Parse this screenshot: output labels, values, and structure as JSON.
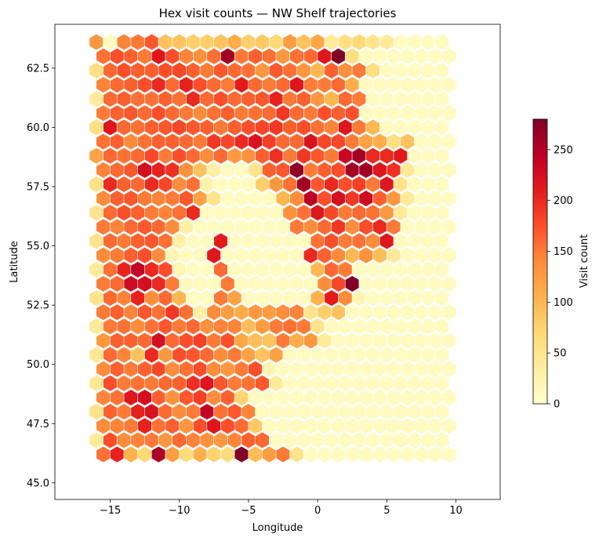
{
  "chart_data": {
    "type": "heatmap",
    "subtype": "hexbin",
    "title": "Hex visit counts — NW Shelf trajectories",
    "xlabel": "Longitude",
    "ylabel": "Latitude",
    "xlim": [
      -19.0,
      13.2
    ],
    "ylim": [
      44.3,
      64.35
    ],
    "x_ticks": [
      -15,
      -10,
      -5,
      0,
      5,
      10
    ],
    "x_tick_labels": [
      "−15",
      "−10",
      "−5",
      "0",
      "5",
      "10"
    ],
    "y_ticks": [
      45.0,
      47.5,
      50.0,
      52.5,
      55.0,
      57.5,
      60.0,
      62.5
    ],
    "y_tick_labels": [
      "45.0",
      "47.5",
      "50.0",
      "52.5",
      "55.0",
      "57.5",
      "60.0",
      "62.5"
    ],
    "colorbar": {
      "label": "Visit count",
      "range": [
        0,
        280
      ],
      "ticks": [
        0,
        50,
        100,
        150,
        200,
        250
      ],
      "colormap": "YlOrRd",
      "stops": [
        "#ffffcc",
        "#ffeda0",
        "#fed976",
        "#feb24c",
        "#fd8d3c",
        "#fc4e2a",
        "#e31a1c",
        "#bd0026",
        "#800026"
      ]
    },
    "grid": false,
    "hex_grid": {
      "row_lat_start": 46.2,
      "row_lat_step": 0.6,
      "col_lon_step": 1.0,
      "rows": [
        {
          "lon_start": -15.5,
          "counts": [
            155,
            205,
            105,
            70,
            255,
            125,
            65,
            105,
            75,
            65,
            280,
            95,
            125,
            150,
            50,
            10,
            10,
            10,
            10,
            10,
            10,
            10,
            10,
            10,
            10,
            10
          ]
        },
        {
          "lon_start": -16.0,
          "counts": [
            40,
            175,
            140,
            145,
            150,
            130,
            160,
            145,
            135,
            130,
            145,
            165,
            160,
            10,
            10,
            10,
            10,
            10,
            10,
            10,
            10,
            10,
            10,
            10,
            10,
            10
          ]
        },
        {
          "lon_start": -15.5,
          "counts": [
            140,
            145,
            150,
            205,
            155,
            165,
            130,
            175,
            215,
            175,
            160,
            85,
            10,
            10,
            10,
            10,
            10,
            10,
            10,
            10,
            10,
            10,
            10,
            10,
            10,
            10
          ]
        },
        {
          "lon_start": -16.0,
          "counts": [
            55,
            165,
            150,
            205,
            220,
            160,
            140,
            150,
            240,
            155,
            170,
            145,
            10,
            10,
            10,
            10,
            10,
            10,
            10,
            10,
            10,
            10,
            10,
            10,
            10,
            10
          ]
        },
        {
          "lon_start": -15.5,
          "counts": [
            145,
            155,
            215,
            225,
            165,
            135,
            170,
            185,
            140,
            165,
            75,
            10,
            10,
            10,
            10,
            10,
            10,
            10,
            10,
            10,
            10,
            10,
            10,
            10,
            10,
            10
          ]
        },
        {
          "lon_start": -16.0,
          "counts": [
            45,
            175,
            150,
            155,
            150,
            160,
            165,
            195,
            215,
            170,
            150,
            155,
            170,
            40,
            10,
            10,
            10,
            10,
            10,
            10,
            10,
            10,
            10,
            10,
            10,
            10
          ]
        },
        {
          "lon_start": -15.5,
          "counts": [
            140,
            165,
            150,
            165,
            180,
            140,
            155,
            175,
            140,
            130,
            150,
            175,
            20,
            10,
            10,
            10,
            10,
            10,
            10,
            10,
            10,
            10,
            10,
            10,
            10,
            10
          ]
        },
        {
          "lon_start": -16.0,
          "counts": [
            45,
            160,
            145,
            90,
            200,
            130,
            175,
            170,
            160,
            140,
            150,
            120,
            90,
            120,
            10,
            10,
            10,
            10,
            10,
            10,
            10,
            10,
            10,
            10,
            10,
            10
          ]
        },
        {
          "lon_start": -15.5,
          "counts": [
            130,
            165,
            165,
            160,
            225,
            160,
            175,
            185,
            150,
            175,
            115,
            95,
            90,
            150,
            110,
            130,
            40,
            10,
            10,
            10,
            10,
            10,
            10,
            10,
            10,
            10
          ]
        },
        {
          "lon_start": -16.0,
          "counts": [
            40,
            150,
            155,
            140,
            155,
            170,
            150,
            160,
            135,
            145,
            145,
            95,
            125,
            150,
            155,
            150,
            50,
            10,
            10,
            10,
            10,
            10,
            10,
            10,
            10,
            10
          ]
        },
        {
          "lon_start": -15.5,
          "counts": [
            150,
            165,
            145,
            170,
            155,
            190,
            155,
            30,
            140,
            125,
            110,
            130,
            125,
            140,
            145,
            50,
            80,
            90,
            10,
            10,
            10,
            10,
            10,
            10,
            10,
            10
          ]
        },
        {
          "lon_start": -16.0,
          "counts": [
            50,
            160,
            145,
            205,
            140,
            160,
            100,
            10,
            10,
            150,
            120,
            10,
            10,
            10,
            10,
            10,
            105,
            210,
            140,
            20,
            10,
            10,
            10,
            10,
            10,
            10
          ]
        },
        {
          "lon_start": -15.5,
          "counts": [
            150,
            160,
            230,
            225,
            200,
            150,
            10,
            10,
            10,
            150,
            10,
            10,
            10,
            10,
            10,
            10,
            140,
            180,
            280,
            10,
            10,
            10,
            10,
            10,
            10,
            10
          ]
        },
        {
          "lon_start": -16.0,
          "counts": [
            40,
            155,
            205,
            240,
            200,
            175,
            20,
            10,
            10,
            160,
            10,
            10,
            10,
            10,
            10,
            10,
            100,
            160,
            150,
            10,
            10,
            10,
            10,
            10,
            10,
            10
          ]
        },
        {
          "lon_start": -15.5,
          "counts": [
            140,
            150,
            165,
            175,
            140,
            20,
            10,
            10,
            215,
            10,
            10,
            10,
            10,
            10,
            10,
            200,
            165,
            140,
            100,
            135,
            95,
            40,
            10,
            10,
            10,
            10
          ]
        },
        {
          "lon_start": -16.0,
          "counts": [
            50,
            160,
            150,
            165,
            170,
            155,
            30,
            10,
            10,
            210,
            10,
            10,
            10,
            10,
            10,
            10,
            155,
            175,
            150,
            155,
            140,
            215,
            10,
            10,
            10,
            10
          ]
        },
        {
          "lon_start": -15.5,
          "counts": [
            150,
            145,
            160,
            170,
            160,
            140,
            30,
            10,
            10,
            10,
            10,
            10,
            10,
            10,
            150,
            140,
            160,
            190,
            140,
            175,
            200,
            150,
            10,
            10,
            10,
            10
          ]
        },
        {
          "lon_start": -16.0,
          "counts": [
            50,
            160,
            175,
            165,
            150,
            145,
            155,
            200,
            10,
            10,
            10,
            10,
            10,
            10,
            135,
            155,
            215,
            180,
            150,
            160,
            155,
            130,
            40,
            10,
            10,
            10
          ]
        },
        {
          "lon_start": -15.5,
          "counts": [
            140,
            165,
            170,
            150,
            145,
            150,
            170,
            120,
            50,
            10,
            10,
            10,
            10,
            100,
            140,
            245,
            175,
            225,
            190,
            230,
            165,
            130,
            40,
            10,
            10,
            10
          ]
        },
        {
          "lon_start": -16.0,
          "counts": [
            55,
            200,
            165,
            160,
            200,
            180,
            140,
            155,
            25,
            10,
            10,
            10,
            80,
            130,
            155,
            260,
            170,
            200,
            175,
            185,
            150,
            215,
            50,
            10,
            10,
            10
          ]
        },
        {
          "lon_start": -15.5,
          "counts": [
            145,
            160,
            170,
            225,
            205,
            195,
            135,
            90,
            30,
            10,
            10,
            50,
            165,
            170,
            270,
            150,
            165,
            175,
            260,
            260,
            215,
            195,
            40,
            10,
            10,
            10
          ]
        },
        {
          "lon_start": -16.0,
          "counts": [
            120,
            160,
            155,
            160,
            180,
            150,
            175,
            160,
            140,
            160,
            130,
            135,
            165,
            195,
            150,
            190,
            170,
            150,
            235,
            260,
            200,
            200,
            210,
            10,
            10,
            10
          ]
        },
        {
          "lon_start": -15.5,
          "counts": [
            155,
            165,
            140,
            155,
            165,
            165,
            160,
            150,
            190,
            180,
            200,
            220,
            185,
            160,
            160,
            220,
            180,
            180,
            150,
            120,
            110,
            60,
            90,
            10,
            10,
            10
          ]
        },
        {
          "lon_start": -16.0,
          "counts": [
            60,
            215,
            160,
            155,
            165,
            170,
            180,
            170,
            165,
            150,
            165,
            175,
            180,
            190,
            165,
            175,
            155,
            145,
            215,
            150,
            100,
            10,
            10,
            10,
            10,
            10
          ]
        },
        {
          "lon_start": -15.5,
          "counts": [
            150,
            165,
            170,
            160,
            175,
            160,
            150,
            140,
            155,
            165,
            150,
            155,
            160,
            190,
            160,
            150,
            175,
            165,
            175,
            10,
            10,
            10,
            10,
            10,
            10,
            10
          ]
        },
        {
          "lon_start": -16.0,
          "counts": [
            40,
            160,
            165,
            155,
            155,
            165,
            155,
            200,
            160,
            175,
            160,
            165,
            170,
            205,
            150,
            165,
            130,
            100,
            160,
            150,
            10,
            10,
            10,
            10,
            10,
            10
          ]
        },
        {
          "lon_start": -15.5,
          "counts": [
            145,
            160,
            165,
            175,
            200,
            160,
            205,
            175,
            160,
            150,
            210,
            160,
            150,
            160,
            215,
            150,
            150,
            160,
            110,
            10,
            10,
            10,
            10,
            10,
            10,
            10
          ]
        },
        {
          "lon_start": -16.0,
          "counts": [
            60,
            160,
            175,
            165,
            165,
            175,
            180,
            165,
            150,
            170,
            160,
            155,
            130,
            170,
            155,
            130,
            100,
            165,
            135,
            150,
            60,
            10,
            10,
            10,
            10,
            10
          ]
        },
        {
          "lon_start": -15.5,
          "counts": [
            155,
            175,
            165,
            150,
            215,
            175,
            145,
            135,
            155,
            260,
            150,
            165,
            155,
            130,
            155,
            160,
            215,
            280,
            60,
            10,
            10,
            10,
            10,
            10,
            10,
            10
          ]
        },
        {
          "lon_start": -16.0,
          "counts": [
            130,
            10,
            145,
            150,
            170,
            90,
            90,
            80,
            80,
            90,
            110,
            80,
            85,
            70,
            125,
            90,
            115,
            40,
            60,
            70,
            50,
            40,
            10,
            10,
            10,
            10
          ]
        }
      ]
    }
  }
}
